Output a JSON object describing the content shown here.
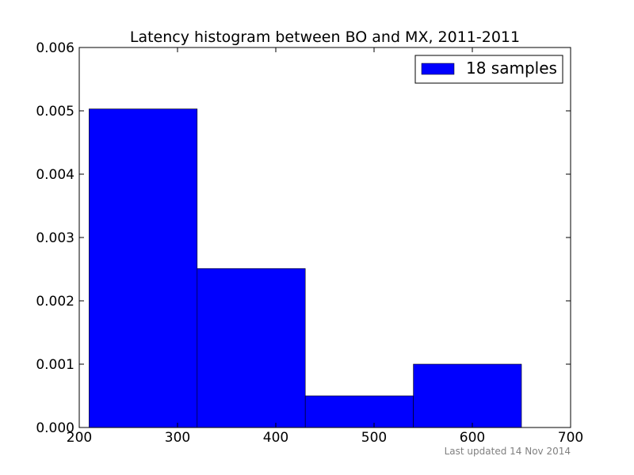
{
  "chart_data": {
    "type": "bar",
    "title": "Latency histogram between BO and MX, 2011-2011",
    "xlabel": "",
    "ylabel": "",
    "bins": [
      {
        "x0": 210,
        "x1": 320,
        "value": 0.00503
      },
      {
        "x0": 320,
        "x1": 430,
        "value": 0.00251
      },
      {
        "x0": 430,
        "x1": 540,
        "value": 0.0005
      },
      {
        "x0": 540,
        "x1": 650,
        "value": 0.001
      }
    ],
    "series": [
      {
        "name": "18 samples",
        "color": "#0000ff"
      }
    ],
    "xlim": [
      200,
      700
    ],
    "ylim": [
      0,
      0.006
    ],
    "xticks": [
      200,
      300,
      400,
      500,
      600,
      700
    ],
    "xtick_labels": [
      "200",
      "300",
      "400",
      "500",
      "600",
      "700"
    ],
    "yticks": [
      0,
      0.001,
      0.002,
      0.003,
      0.004,
      0.005,
      0.006
    ],
    "ytick_labels": [
      "0.000",
      "0.001",
      "0.002",
      "0.003",
      "0.004",
      "0.005",
      "0.006"
    ],
    "grid": false,
    "legend_position": "top-right"
  },
  "footer": {
    "text": "Last updated 14 Nov 2014"
  }
}
